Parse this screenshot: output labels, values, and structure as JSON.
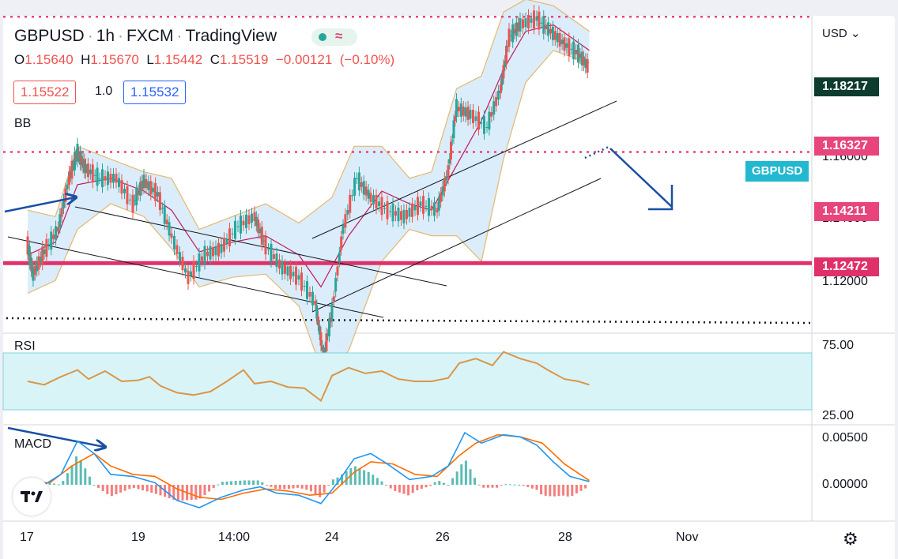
{
  "header": {
    "symbol": "GBPUSD",
    "interval": "1h",
    "exchange": "FXCM",
    "source": "TradingView",
    "separator": "·",
    "pill_icon": "≈"
  },
  "ohlc": {
    "o_label": "O",
    "o": "1.15640",
    "h_label": "H",
    "h": "1.15670",
    "l_label": "L",
    "l": "1.15442",
    "c_label": "C",
    "c": "1.15519",
    "change": "−0.00121",
    "change_pct": "(−0.10%)"
  },
  "quote": {
    "bid": "1.15522",
    "spread": "1.0",
    "ask": "1.15532"
  },
  "panes": {
    "bb": "BB",
    "rsi": "RSI",
    "macd": "MACD"
  },
  "currency": "USD",
  "price_labels": [
    {
      "value": "1.18217",
      "color": "#0d3b2e"
    },
    {
      "value": "1.16327",
      "color": "#e8457c"
    },
    {
      "value": "1.14211",
      "color": "#e8457c"
    },
    {
      "value": "1.12472",
      "color": "#e0306a"
    }
  ],
  "axis_prices": [
    "1.16000",
    "1.14000",
    "1.12000"
  ],
  "symbol_tag": "GBPUSD",
  "rsi_axis": [
    "75.00",
    "25.00"
  ],
  "macd_axis": [
    "0.00500",
    "0.00000"
  ],
  "x_ticks": [
    "17",
    "19",
    "14:00",
    "24",
    "26",
    "28",
    "Nov"
  ],
  "colors": {
    "bb_fill": "#d7ebfa",
    "bb_band": "#e5b870",
    "bb_basis": "#c2185b",
    "rsi_line": "#d9964a",
    "rsi_fill": "#d9f4f7",
    "macd_line": "#2196f3",
    "signal_line": "#ff6d00",
    "arrow": "#1a4fa3"
  },
  "chart_data": {
    "type": "line",
    "symbol": "GBPUSD",
    "interval": "1h",
    "x": [
      "17",
      "19",
      "14:00",
      "24",
      "26",
      "28",
      "Nov"
    ],
    "price": {
      "path": [
        [
          0.0,
          1.1275
        ],
        [
          0.1,
          1.123
        ],
        [
          0.3,
          1.1265
        ],
        [
          0.55,
          1.13
        ],
        [
          0.75,
          1.138
        ],
        [
          0.9,
          1.142
        ],
        [
          1.05,
          1.1395
        ],
        [
          1.3,
          1.138
        ],
        [
          1.6,
          1.138
        ],
        [
          1.9,
          1.134
        ],
        [
          2.1,
          1.1375
        ],
        [
          2.35,
          1.1355
        ],
        [
          2.6,
          1.129
        ],
        [
          2.9,
          1.1225
        ],
        [
          3.2,
          1.126
        ],
        [
          3.5,
          1.127
        ],
        [
          3.8,
          1.1305
        ],
        [
          4.1,
          1.132
        ],
        [
          4.3,
          1.1275
        ],
        [
          4.6,
          1.124
        ],
        [
          4.9,
          1.1225
        ],
        [
          5.2,
          1.1185
        ],
        [
          5.35,
          1.11
        ],
        [
          5.5,
          1.117
        ],
        [
          5.7,
          1.13
        ],
        [
          5.95,
          1.138
        ],
        [
          6.2,
          1.135
        ],
        [
          6.5,
          1.133
        ],
        [
          6.8,
          1.132
        ],
        [
          7.1,
          1.134
        ],
        [
          7.4,
          1.133
        ],
        [
          7.6,
          1.139
        ],
        [
          7.75,
          1.149
        ],
        [
          8.0,
          1.148
        ],
        [
          8.3,
          1.146
        ],
        [
          8.55,
          1.152
        ],
        [
          8.7,
          1.16
        ],
        [
          8.9,
          1.162
        ],
        [
          9.2,
          1.163
        ],
        [
          9.45,
          1.161
        ],
        [
          9.7,
          1.159
        ],
        [
          9.95,
          1.1575
        ],
        [
          10.15,
          1.1552
        ]
      ],
      "last_close": 1.15519
    },
    "horizontal_levels": [
      1.18217,
      1.16327,
      1.14211,
      1.12472
    ],
    "bollinger": {
      "upper": [
        [
          0.0,
          1.133
        ],
        [
          0.5,
          1.132
        ],
        [
          0.9,
          1.143
        ],
        [
          1.5,
          1.141
        ],
        [
          2.1,
          1.139
        ],
        [
          2.6,
          1.138
        ],
        [
          3.1,
          1.13
        ],
        [
          3.7,
          1.132
        ],
        [
          4.3,
          1.134
        ],
        [
          4.9,
          1.131
        ],
        [
          5.5,
          1.135
        ],
        [
          5.9,
          1.143
        ],
        [
          6.4,
          1.143
        ],
        [
          6.9,
          1.138
        ],
        [
          7.3,
          1.139
        ],
        [
          7.75,
          1.152
        ],
        [
          8.2,
          1.154
        ],
        [
          8.6,
          1.164
        ],
        [
          9.0,
          1.166
        ],
        [
          9.5,
          1.165
        ],
        [
          10.15,
          1.161
        ]
      ],
      "basis": [
        [
          0.0,
          1.126
        ],
        [
          0.5,
          1.128
        ],
        [
          0.9,
          1.137
        ],
        [
          1.5,
          1.138
        ],
        [
          2.1,
          1.136
        ],
        [
          2.6,
          1.133
        ],
        [
          3.1,
          1.1265
        ],
        [
          3.7,
          1.128
        ],
        [
          4.3,
          1.129
        ],
        [
          4.9,
          1.126
        ],
        [
          5.3,
          1.121
        ],
        [
          5.8,
          1.129
        ],
        [
          6.4,
          1.136
        ],
        [
          6.9,
          1.134
        ],
        [
          7.3,
          1.133
        ],
        [
          7.75,
          1.14
        ],
        [
          8.2,
          1.147
        ],
        [
          8.6,
          1.155
        ],
        [
          9.0,
          1.161
        ],
        [
          9.5,
          1.162
        ],
        [
          10.15,
          1.158
        ]
      ],
      "lower": [
        [
          0.0,
          1.12
        ],
        [
          0.5,
          1.122
        ],
        [
          0.9,
          1.13
        ],
        [
          1.5,
          1.134
        ],
        [
          2.1,
          1.132
        ],
        [
          2.6,
          1.127
        ],
        [
          3.1,
          1.121
        ],
        [
          3.7,
          1.1225
        ],
        [
          4.3,
          1.123
        ],
        [
          4.9,
          1.118
        ],
        [
          5.35,
          1.107
        ],
        [
          5.8,
          1.111
        ],
        [
          6.4,
          1.125
        ],
        [
          6.9,
          1.13
        ],
        [
          7.3,
          1.129
        ],
        [
          7.75,
          1.129
        ],
        [
          8.2,
          1.125
        ],
        [
          8.6,
          1.141
        ],
        [
          9.0,
          1.153
        ],
        [
          9.5,
          1.158
        ],
        [
          10.15,
          1.156
        ]
      ],
      "name": "BB"
    },
    "rsi": {
      "name": "RSI",
      "ylim": [
        25,
        75
      ],
      "path": [
        [
          0.0,
          50
        ],
        [
          0.3,
          47
        ],
        [
          0.6,
          54
        ],
        [
          0.9,
          60
        ],
        [
          1.1,
          52
        ],
        [
          1.4,
          59
        ],
        [
          1.7,
          50
        ],
        [
          2.0,
          51
        ],
        [
          2.2,
          54
        ],
        [
          2.4,
          46
        ],
        [
          2.7,
          40
        ],
        [
          3.0,
          38
        ],
        [
          3.3,
          41
        ],
        [
          3.6,
          50
        ],
        [
          3.9,
          60
        ],
        [
          4.1,
          48
        ],
        [
          4.4,
          50
        ],
        [
          4.7,
          45
        ],
        [
          5.0,
          44
        ],
        [
          5.3,
          33
        ],
        [
          5.5,
          55
        ],
        [
          5.8,
          62
        ],
        [
          6.1,
          57
        ],
        [
          6.4,
          59
        ],
        [
          6.7,
          52
        ],
        [
          7.0,
          50
        ],
        [
          7.3,
          50
        ],
        [
          7.6,
          53
        ],
        [
          7.8,
          66
        ],
        [
          8.1,
          70
        ],
        [
          8.4,
          64
        ],
        [
          8.6,
          76
        ],
        [
          8.9,
          70
        ],
        [
          9.2,
          66
        ],
        [
          9.4,
          60
        ],
        [
          9.7,
          52
        ],
        [
          9.95,
          50
        ],
        [
          10.15,
          47
        ]
      ]
    },
    "macd": {
      "name": "MACD",
      "ylim": [
        -0.0025,
        0.0065
      ],
      "macd": [
        [
          0.0,
          0.0005
        ],
        [
          0.3,
          0.0
        ],
        [
          0.6,
          0.001
        ],
        [
          0.9,
          0.0042
        ],
        [
          1.2,
          0.003
        ],
        [
          1.5,
          0.001
        ],
        [
          1.9,
          0.0008
        ],
        [
          2.3,
          0.0002
        ],
        [
          2.7,
          -0.0015
        ],
        [
          3.1,
          -0.0022
        ],
        [
          3.5,
          -0.0012
        ],
        [
          3.9,
          -0.0005
        ],
        [
          4.2,
          -0.0002
        ],
        [
          4.5,
          -0.0008
        ],
        [
          4.9,
          -0.001
        ],
        [
          5.3,
          -0.0018
        ],
        [
          5.6,
          0.0002
        ],
        [
          5.9,
          0.0025
        ],
        [
          6.2,
          0.003
        ],
        [
          6.5,
          0.002
        ],
        [
          6.9,
          0.0005
        ],
        [
          7.3,
          0.0008
        ],
        [
          7.6,
          0.0018
        ],
        [
          7.9,
          0.005
        ],
        [
          8.2,
          0.004
        ],
        [
          8.6,
          0.0048
        ],
        [
          8.9,
          0.0046
        ],
        [
          9.2,
          0.0038
        ],
        [
          9.5,
          0.0022
        ],
        [
          9.8,
          0.0008
        ],
        [
          10.15,
          0.0003
        ]
      ],
      "signal": [
        [
          0.0,
          0.0002
        ],
        [
          0.4,
          0.0002
        ],
        [
          0.8,
          0.0018
        ],
        [
          1.2,
          0.003
        ],
        [
          1.5,
          0.0018
        ],
        [
          1.9,
          0.001
        ],
        [
          2.3,
          0.0008
        ],
        [
          2.7,
          -0.0004
        ],
        [
          3.1,
          -0.0012
        ],
        [
          3.5,
          -0.0014
        ],
        [
          3.9,
          -0.0008
        ],
        [
          4.3,
          -0.0004
        ],
        [
          4.7,
          -0.0006
        ],
        [
          5.1,
          -0.001
        ],
        [
          5.5,
          -0.0008
        ],
        [
          5.9,
          0.0012
        ],
        [
          6.2,
          0.0022
        ],
        [
          6.6,
          0.002
        ],
        [
          7.0,
          0.001
        ],
        [
          7.4,
          0.0008
        ],
        [
          7.8,
          0.0028
        ],
        [
          8.1,
          0.004
        ],
        [
          8.5,
          0.0048
        ],
        [
          8.9,
          0.0046
        ],
        [
          9.3,
          0.004
        ],
        [
          9.7,
          0.002
        ],
        [
          10.15,
          0.0004
        ]
      ]
    }
  }
}
